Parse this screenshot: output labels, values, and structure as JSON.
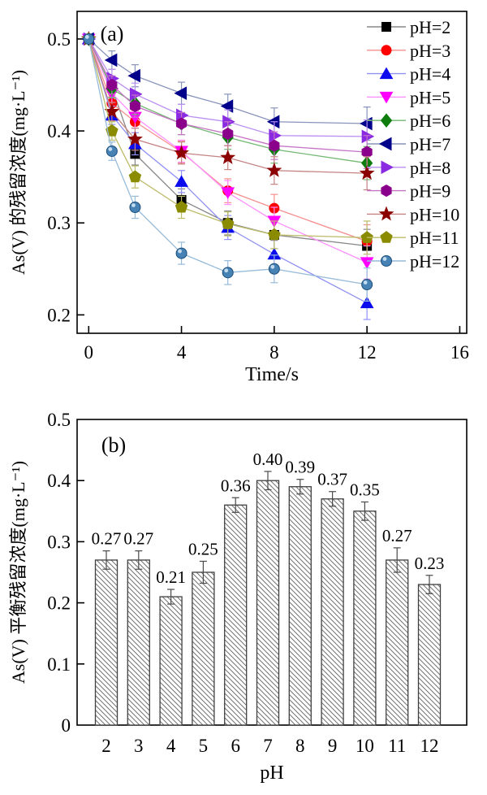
{
  "figure": {
    "background": "#ffffff",
    "panel_a_label": "(a)",
    "panel_b_label": "(b)"
  },
  "chart_data": [
    {
      "type": "line",
      "panel_label": "(a)",
      "xlabel": "Time/s",
      "ylabel": "As(V) 的残留浓度(mg·L⁻¹)",
      "x": [
        0,
        1,
        2,
        4,
        6,
        8,
        12
      ],
      "xlim": [
        -0.5,
        16.3
      ],
      "ylim": [
        0.18,
        0.53
      ],
      "xticks": [
        0,
        4,
        8,
        12,
        16
      ],
      "yticks": [
        0.2,
        0.3,
        0.4,
        0.5
      ],
      "grid": false,
      "legend_position": "inside-right",
      "error_by_time": [
        0.004,
        0.01,
        0.012,
        0.012,
        0.013,
        0.015,
        0.018
      ],
      "series": [
        {
          "name": "pH=2",
          "marker": "square",
          "marker_color": "#000000",
          "line_color": "#888888",
          "values": [
            0.5,
            0.447,
            0.375,
            0.325,
            0.3,
            0.287,
            0.275
          ]
        },
        {
          "name": "pH=3",
          "marker": "circle",
          "marker_color": "#ff0000",
          "line_color": "#f58f8f",
          "values": [
            0.5,
            0.43,
            0.41,
            0.377,
            0.335,
            0.316,
            0.28
          ]
        },
        {
          "name": "pH=4",
          "marker": "triangle-up",
          "marker_color": "#0b0bee",
          "line_color": "#9090f5",
          "values": [
            0.5,
            0.417,
            0.386,
            0.345,
            0.295,
            0.266,
            0.213
          ]
        },
        {
          "name": "pH=5",
          "marker": "triangle-down",
          "marker_color": "#ff00ff",
          "line_color": "#ff8fff",
          "values": [
            0.5,
            0.441,
            0.415,
            0.378,
            0.333,
            0.302,
            0.257
          ]
        },
        {
          "name": "pH=6",
          "marker": "diamond",
          "marker_color": "#0e7d0e",
          "line_color": "#72b872",
          "values": [
            0.5,
            0.446,
            0.43,
            0.408,
            0.393,
            0.38,
            0.365
          ]
        },
        {
          "name": "pH=7",
          "marker": "triangle-left",
          "marker_color": "#00008b",
          "line_color": "#8893bb",
          "values": [
            0.5,
            0.477,
            0.46,
            0.441,
            0.427,
            0.41,
            0.408
          ]
        },
        {
          "name": "pH=8",
          "marker": "triangle-right",
          "marker_color": "#8a2be2",
          "line_color": "#bb8ff2",
          "values": [
            0.5,
            0.457,
            0.44,
            0.417,
            0.41,
            0.395,
            0.394
          ]
        },
        {
          "name": "pH=9",
          "marker": "hexagon",
          "marker_color": "#8b008b",
          "line_color": "#c573c5",
          "values": [
            0.5,
            0.45,
            0.427,
            0.408,
            0.397,
            0.384,
            0.377
          ]
        },
        {
          "name": "pH=10",
          "marker": "star",
          "marker_color": "#8b0000",
          "line_color": "#c58383",
          "values": [
            0.5,
            0.421,
            0.391,
            0.376,
            0.371,
            0.357,
            0.354
          ]
        },
        {
          "name": "pH=11",
          "marker": "pentagon",
          "marker_color": "#8b8b00",
          "line_color": "#bcbc6a",
          "values": [
            0.5,
            0.4,
            0.35,
            0.317,
            0.299,
            0.287,
            0.284
          ]
        },
        {
          "name": "pH=12",
          "marker": "sphere",
          "marker_color": "#4682b4",
          "line_color": "#97bbd9",
          "values": [
            0.5,
            0.378,
            0.317,
            0.267,
            0.246,
            0.25,
            0.233
          ]
        }
      ]
    },
    {
      "type": "bar",
      "panel_label": "(b)",
      "xlabel": "pH",
      "ylabel": "As(V) 平衡残留浓度(mg·L⁻¹)",
      "categories": [
        "2",
        "3",
        "4",
        "5",
        "6",
        "7",
        "8",
        "9",
        "10",
        "11",
        "12"
      ],
      "values": [
        0.27,
        0.27,
        0.21,
        0.25,
        0.36,
        0.4,
        0.39,
        0.37,
        0.35,
        0.27,
        0.23
      ],
      "value_labels": [
        "0.27",
        "0.27",
        "0.21",
        "0.25",
        "0.36",
        "0.40",
        "0.39",
        "0.37",
        "0.35",
        "0.27",
        "0.23"
      ],
      "errors": [
        0.015,
        0.015,
        0.012,
        0.018,
        0.012,
        0.015,
        0.012,
        0.012,
        0.015,
        0.02,
        0.015
      ],
      "ylim": [
        0,
        0.5
      ],
      "yticks": [
        0,
        0.1,
        0.2,
        0.3,
        0.4,
        0.5
      ],
      "grid": false,
      "bar_style": {
        "hatch": "diagonal-back",
        "edge_color": "#404040",
        "hatch_color": "#737373",
        "fill": "#ffffff"
      }
    }
  ]
}
